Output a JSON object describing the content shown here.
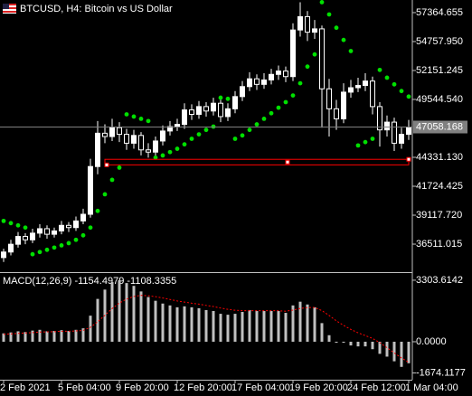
{
  "chart_data": [
    {
      "type": "candlestick",
      "title": "BTCUSD, H4: Bitcoin vs US Dollar",
      "categories": [
        "2 Feb 2021",
        null,
        null,
        null,
        null,
        null,
        null,
        null,
        "5 Feb 04:00",
        null,
        null,
        null,
        null,
        null,
        null,
        null,
        "9 Feb 20:00",
        null,
        null,
        null,
        null,
        null,
        null,
        null,
        "12 Feb 20:00",
        null,
        null,
        null,
        null,
        null,
        null,
        null,
        "17 Feb 04:00",
        null,
        null,
        null,
        null,
        null,
        null,
        null,
        "19 Feb 20:00",
        null,
        null,
        null,
        null,
        null,
        null,
        null,
        "24 Feb 12:00",
        null,
        null,
        null,
        null,
        null,
        null,
        null,
        "1 Mar 04:00"
      ],
      "open": [
        35300,
        35800,
        36500,
        37200,
        36900,
        37500,
        37900,
        37400,
        37700,
        38200,
        38000,
        38600,
        39200,
        43500,
        46500,
        46200,
        47000,
        46400,
        45600,
        46300,
        45000,
        44800,
        45800,
        46700,
        47100,
        47300,
        48600,
        48200,
        48900,
        48500,
        49200,
        48000,
        48700,
        49800,
        50700,
        51400,
        50900,
        51300,
        51800,
        52100,
        51600,
        55800,
        57000,
        55600,
        55900,
        50500,
        48700,
        47800,
        50200,
        50600,
        50800,
        51200,
        48900,
        46800,
        47500,
        45600,
        46400
      ],
      "high": [
        36100,
        36900,
        37600,
        37500,
        37900,
        38300,
        38200,
        38000,
        38600,
        38500,
        39000,
        39700,
        44200,
        47600,
        47300,
        47800,
        47500,
        46900,
        46800,
        46600,
        45600,
        46200,
        47200,
        47600,
        47800,
        49200,
        49100,
        49400,
        49300,
        49700,
        49500,
        49200,
        50300,
        51200,
        52000,
        51800,
        51900,
        52300,
        52600,
        52500,
        56400,
        58300,
        57500,
        56700,
        56200,
        51400,
        49500,
        51000,
        51300,
        51500,
        51900,
        51600,
        49300,
        48100,
        47900,
        47000,
        47700
      ],
      "low": [
        34900,
        35500,
        36200,
        36500,
        36600,
        37100,
        37000,
        37100,
        37400,
        37600,
        37700,
        38300,
        38900,
        42800,
        45600,
        45800,
        45700,
        45000,
        45100,
        44500,
        44300,
        44400,
        45400,
        46300,
        46700,
        46900,
        47700,
        47800,
        48000,
        48100,
        47500,
        47600,
        48300,
        49400,
        50300,
        50400,
        50500,
        50900,
        51300,
        51100,
        51200,
        55200,
        54800,
        55000,
        47000,
        46200,
        46800,
        47400,
        49700,
        50200,
        50300,
        48200,
        45300,
        46200,
        44900,
        45100,
        45900
      ],
      "close": [
        35800,
        36500,
        37200,
        36900,
        37500,
        37900,
        37400,
        37700,
        38200,
        38000,
        38600,
        39200,
        43500,
        46500,
        46200,
        47000,
        46400,
        45600,
        46300,
        45000,
        44800,
        45800,
        46700,
        47100,
        47300,
        48600,
        48200,
        48900,
        48500,
        49200,
        48000,
        48700,
        49800,
        50700,
        51400,
        50900,
        51300,
        51800,
        52100,
        51600,
        55800,
        57000,
        55600,
        55900,
        50500,
        48700,
        47800,
        50200,
        50600,
        50800,
        51200,
        48900,
        46800,
        47500,
        45600,
        46400,
        47058.168
      ],
      "sar": [
        38600,
        38400,
        38200,
        38000,
        35600,
        35800,
        36000,
        36200,
        36400,
        36600,
        36900,
        37300,
        38000,
        39500,
        41000,
        42300,
        43400,
        48200,
        48000,
        47800,
        47600,
        44300,
        44500,
        44800,
        45100,
        45500,
        46000,
        46400,
        46800,
        47100,
        49700,
        49600,
        46000,
        46300,
        46800,
        47300,
        47800,
        48300,
        48800,
        49300,
        49900,
        51000,
        52500,
        53600,
        58300,
        57200,
        56000,
        54900,
        53900,
        45400,
        45700,
        46000,
        52200,
        51500,
        50900,
        50300,
        49800
      ],
      "current_price": 47058.168,
      "rectangle": {
        "top": 44150,
        "bottom": 43650,
        "color": "#ff0000"
      },
      "ylim": [
        34070,
        58500
      ],
      "yticks": [
        57364.655,
        {
          "value": 54757.95,
          "label": "54757.950"
        },
        52151.245,
        {
          "value": 49544.54,
          "label": "49544.540"
        },
        {
          "value": 44331.13,
          "label": "44331.130"
        },
        41724.425,
        {
          "value": 39117.72,
          "label": "39117.720"
        },
        36511.015
      ],
      "bull_color": "#ffffff",
      "bear_color": "#000000",
      "wick_color": "#ffffff",
      "sar_color": "#00e000",
      "grid": false
    },
    {
      "type": "macd",
      "title": "MACD(12,26,9) -1154.4979 -1108.3355",
      "histogram": [
        450,
        500,
        560,
        520,
        600,
        640,
        560,
        580,
        620,
        580,
        640,
        720,
        1400,
        2300,
        2800,
        3200,
        3300,
        3150,
        3000,
        2700,
        2400,
        2200,
        2050,
        1950,
        1850,
        1900,
        1850,
        1800,
        1700,
        1650,
        1500,
        1450,
        1500,
        1600,
        1700,
        1650,
        1650,
        1650,
        1650,
        1550,
        1950,
        2150,
        2000,
        1850,
        1000,
        350,
        -50,
        -50,
        -200,
        -250,
        -250,
        -400,
        -650,
        -800,
        -1050,
        -1350,
        -1154.4979
      ],
      "signal": [
        400,
        420,
        450,
        470,
        490,
        520,
        530,
        540,
        560,
        565,
        580,
        610,
        770,
        1070,
        1420,
        1780,
        2080,
        2290,
        2430,
        2490,
        2470,
        2420,
        2350,
        2270,
        2190,
        2130,
        2070,
        2020,
        1950,
        1890,
        1810,
        1740,
        1690,
        1670,
        1670,
        1670,
        1670,
        1670,
        1665,
        1640,
        1700,
        1790,
        1830,
        1840,
        1670,
        1410,
        1120,
        880,
        660,
        480,
        330,
        180,
        -50,
        -320,
        -600,
        -870,
        -1108.3355
      ],
      "ylim": [
        -2040,
        3640
      ],
      "yticks": [
        3303.6142,
        {
          "value": 0,
          "label": "0.0000"
        },
        -1674.1177
      ],
      "histogram_color": "#c0c0c0",
      "signal_color": "#ff0000"
    }
  ]
}
